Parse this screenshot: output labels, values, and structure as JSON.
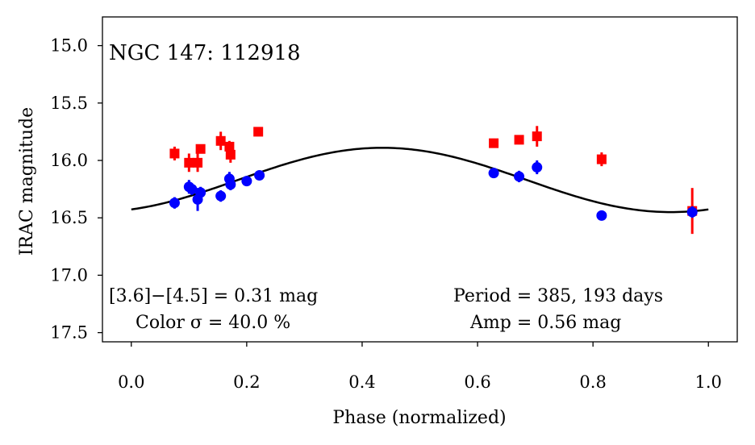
{
  "chart_data": {
    "type": "scatter",
    "title": "NGC 147:  112918",
    "xlabel": "Phase (normalized)",
    "ylabel": "IRAC magnitude",
    "xlim": [
      -0.05,
      1.05
    ],
    "ylim": [
      17.58,
      14.75
    ],
    "y_inverted": true,
    "grid": false,
    "x_ticks": [
      0.0,
      0.2,
      0.4,
      0.6,
      0.8,
      1.0
    ],
    "x_tick_labels": [
      "0.0",
      "0.2",
      "0.4",
      "0.6",
      "0.8",
      "1.0"
    ],
    "y_ticks": [
      15.0,
      15.5,
      16.0,
      16.5,
      17.0,
      17.5
    ],
    "y_tick_labels": [
      "15.0",
      "15.5",
      "16.0",
      "16.5",
      "17.0",
      "17.5"
    ],
    "series": [
      {
        "name": "[3.6]",
        "color": "#0000ff",
        "marker": "circle",
        "points": [
          {
            "x": 0.075,
            "y": 16.37,
            "err": 0.05
          },
          {
            "x": 0.1,
            "y": 16.23,
            "err": 0.06
          },
          {
            "x": 0.105,
            "y": 16.25,
            "err": 0.05
          },
          {
            "x": 0.115,
            "y": 16.34,
            "err": 0.1
          },
          {
            "x": 0.12,
            "y": 16.28,
            "err": 0.05
          },
          {
            "x": 0.155,
            "y": 16.31,
            "err": 0.05
          },
          {
            "x": 0.17,
            "y": 16.16,
            "err": 0.06
          },
          {
            "x": 0.172,
            "y": 16.21,
            "err": 0.05
          },
          {
            "x": 0.2,
            "y": 16.18,
            "err": 0.04
          },
          {
            "x": 0.222,
            "y": 16.13,
            "err": 0.04
          },
          {
            "x": 0.628,
            "y": 16.11,
            "err": 0.04
          },
          {
            "x": 0.672,
            "y": 16.14,
            "err": 0.05
          },
          {
            "x": 0.703,
            "y": 16.06,
            "err": 0.06
          },
          {
            "x": 0.815,
            "y": 16.48,
            "err": 0.04
          },
          {
            "x": 0.972,
            "y": 16.45,
            "err": 0.05
          }
        ]
      },
      {
        "name": "[4.5]",
        "color": "#ff0000",
        "marker": "square",
        "points": [
          {
            "x": 0.075,
            "y": 15.94,
            "err": 0.06
          },
          {
            "x": 0.1,
            "y": 16.02,
            "err": 0.08
          },
          {
            "x": 0.115,
            "y": 16.02,
            "err": 0.08
          },
          {
            "x": 0.12,
            "y": 15.9,
            "err": 0.04
          },
          {
            "x": 0.155,
            "y": 15.83,
            "err": 0.08
          },
          {
            "x": 0.17,
            "y": 15.88,
            "err": 0.05
          },
          {
            "x": 0.172,
            "y": 15.95,
            "err": 0.07
          },
          {
            "x": 0.22,
            "y": 15.75,
            "err": 0.04
          },
          {
            "x": 0.628,
            "y": 15.85,
            "err": 0.04
          },
          {
            "x": 0.672,
            "y": 15.82,
            "err": 0.04
          },
          {
            "x": 0.703,
            "y": 15.79,
            "err": 0.09
          },
          {
            "x": 0.815,
            "y": 15.99,
            "err": 0.06
          },
          {
            "x": 0.972,
            "y": 16.44,
            "err": 0.2
          }
        ]
      }
    ],
    "model": {
      "name": "fit",
      "color": "#000000",
      "x_start": 0.0,
      "x_end": 1.0,
      "min_phase": 0.435,
      "min_value": 15.89,
      "max_phase": 0.935,
      "max_value": 16.45
    },
    "annotations": {
      "color_text": "[3.6]−[4.5] = 0.31 mag",
      "color_sigma_text": "Color σ = 40.0 %",
      "period_text": "Period = 385, 193 days",
      "amp_text": "Amp = 0.56 mag"
    }
  }
}
